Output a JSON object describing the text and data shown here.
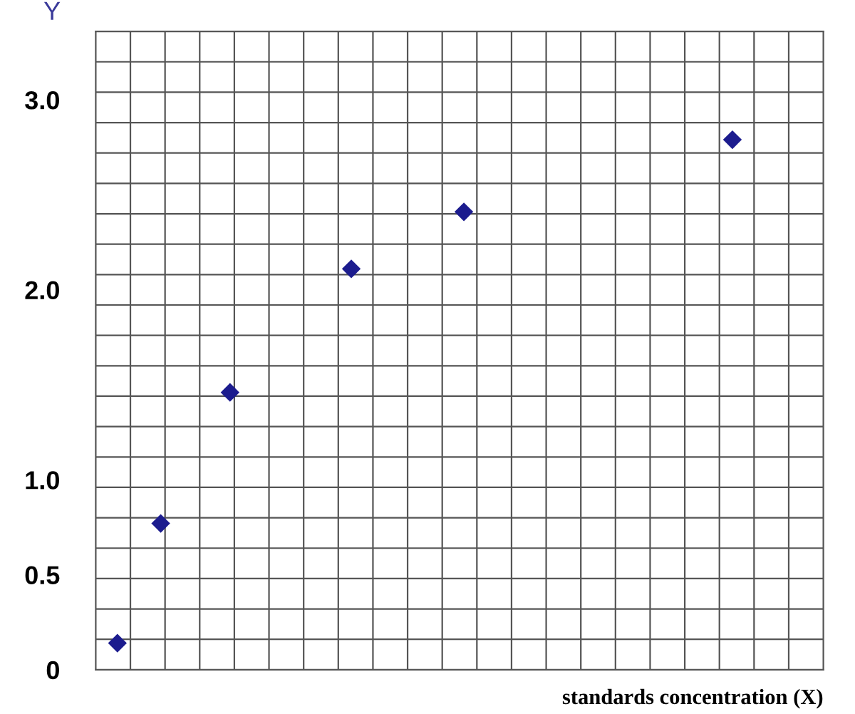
{
  "chart_data": {
    "type": "scatter",
    "ylabel": "Y",
    "xlabel": "standards concentration (X)",
    "categories": [
      null,
      null,
      null,
      null,
      null,
      null,
      null,
      null,
      null,
      null,
      null,
      null,
      null,
      null,
      null,
      null,
      null,
      null,
      null,
      null,
      null,
      null,
      null,
      null,
      null,
      null,
      null,
      null,
      null,
      null,
      null,
      null,
      null,
      null,
      null,
      null,
      null,
      null,
      null,
      null,
      null,
      null,
      null,
      null,
      null,
      null,
      null,
      null,
      null,
      null,
      null,
      null,
      null,
      null,
      null,
      null,
      null,
      null,
      null,
      null,
      null,
      null,
      null,
      null,
      null,
      null,
      null,
      null,
      null,
      null,
      null,
      null,
      null,
      null,
      null,
      null,
      null,
      null,
      null,
      null,
      null,
      null,
      null,
      null
    ],
    "values": [
      null,
      null,
      0.14,
      null,
      null,
      null,
      null,
      0.77,
      null,
      null,
      null,
      null,
      null,
      null,
      null,
      1.46,
      null,
      null,
      null,
      null,
      null,
      null,
      null,
      null,
      null,
      null,
      null,
      null,
      null,
      2.11,
      null,
      null,
      null,
      null,
      null,
      null,
      null,
      null,
      null,
      null,
      null,
      null,
      2.41,
      null,
      null,
      null,
      null,
      null,
      null,
      null,
      null,
      null,
      null,
      null,
      null,
      null,
      null,
      null,
      null,
      null,
      null,
      null,
      null,
      null,
      null,
      null,
      null,
      null,
      null,
      null,
      null,
      null,
      null,
      2.79,
      null,
      null,
      null,
      null,
      null,
      null,
      null,
      null,
      null,
      null
    ],
    "color": "#1c1c8e",
    "marker": "diamond",
    "ylim": [
      0,
      3.36
    ],
    "yticks": [
      {
        "value": 0,
        "label": "0"
      },
      {
        "value": 0.5,
        "label": "0.5"
      },
      {
        "value": 1,
        "label": "1.0"
      },
      {
        "value": 2,
        "label": "2.0"
      },
      {
        "value": 3,
        "label": "3.0"
      },
      {
        "value": 0.16,
        "label": null
      },
      {
        "value": 0.32,
        "label": null
      },
      {
        "value": 0.48,
        "label": null
      },
      {
        "value": 0.64,
        "label": null
      },
      {
        "value": 0.8,
        "label": null
      },
      {
        "value": 0.96,
        "label": null
      },
      {
        "value": 1.12,
        "label": null
      },
      {
        "value": 1.28,
        "label": null
      },
      {
        "value": 1.44,
        "label": null
      },
      {
        "value": 1.6,
        "label": null
      },
      {
        "value": 1.76,
        "label": null
      },
      {
        "value": 1.92,
        "label": null
      },
      {
        "value": 2.08,
        "label": null
      },
      {
        "value": 2.24,
        "label": null
      },
      {
        "value": 2.4,
        "label": null
      },
      {
        "value": 2.56,
        "label": null
      },
      {
        "value": 2.72,
        "label": null
      },
      {
        "value": 2.88,
        "label": null
      },
      {
        "value": 3.04,
        "label": null
      },
      {
        "value": 3.2,
        "label": null
      }
    ],
    "grid": true,
    "tick_labels": "y"
  }
}
